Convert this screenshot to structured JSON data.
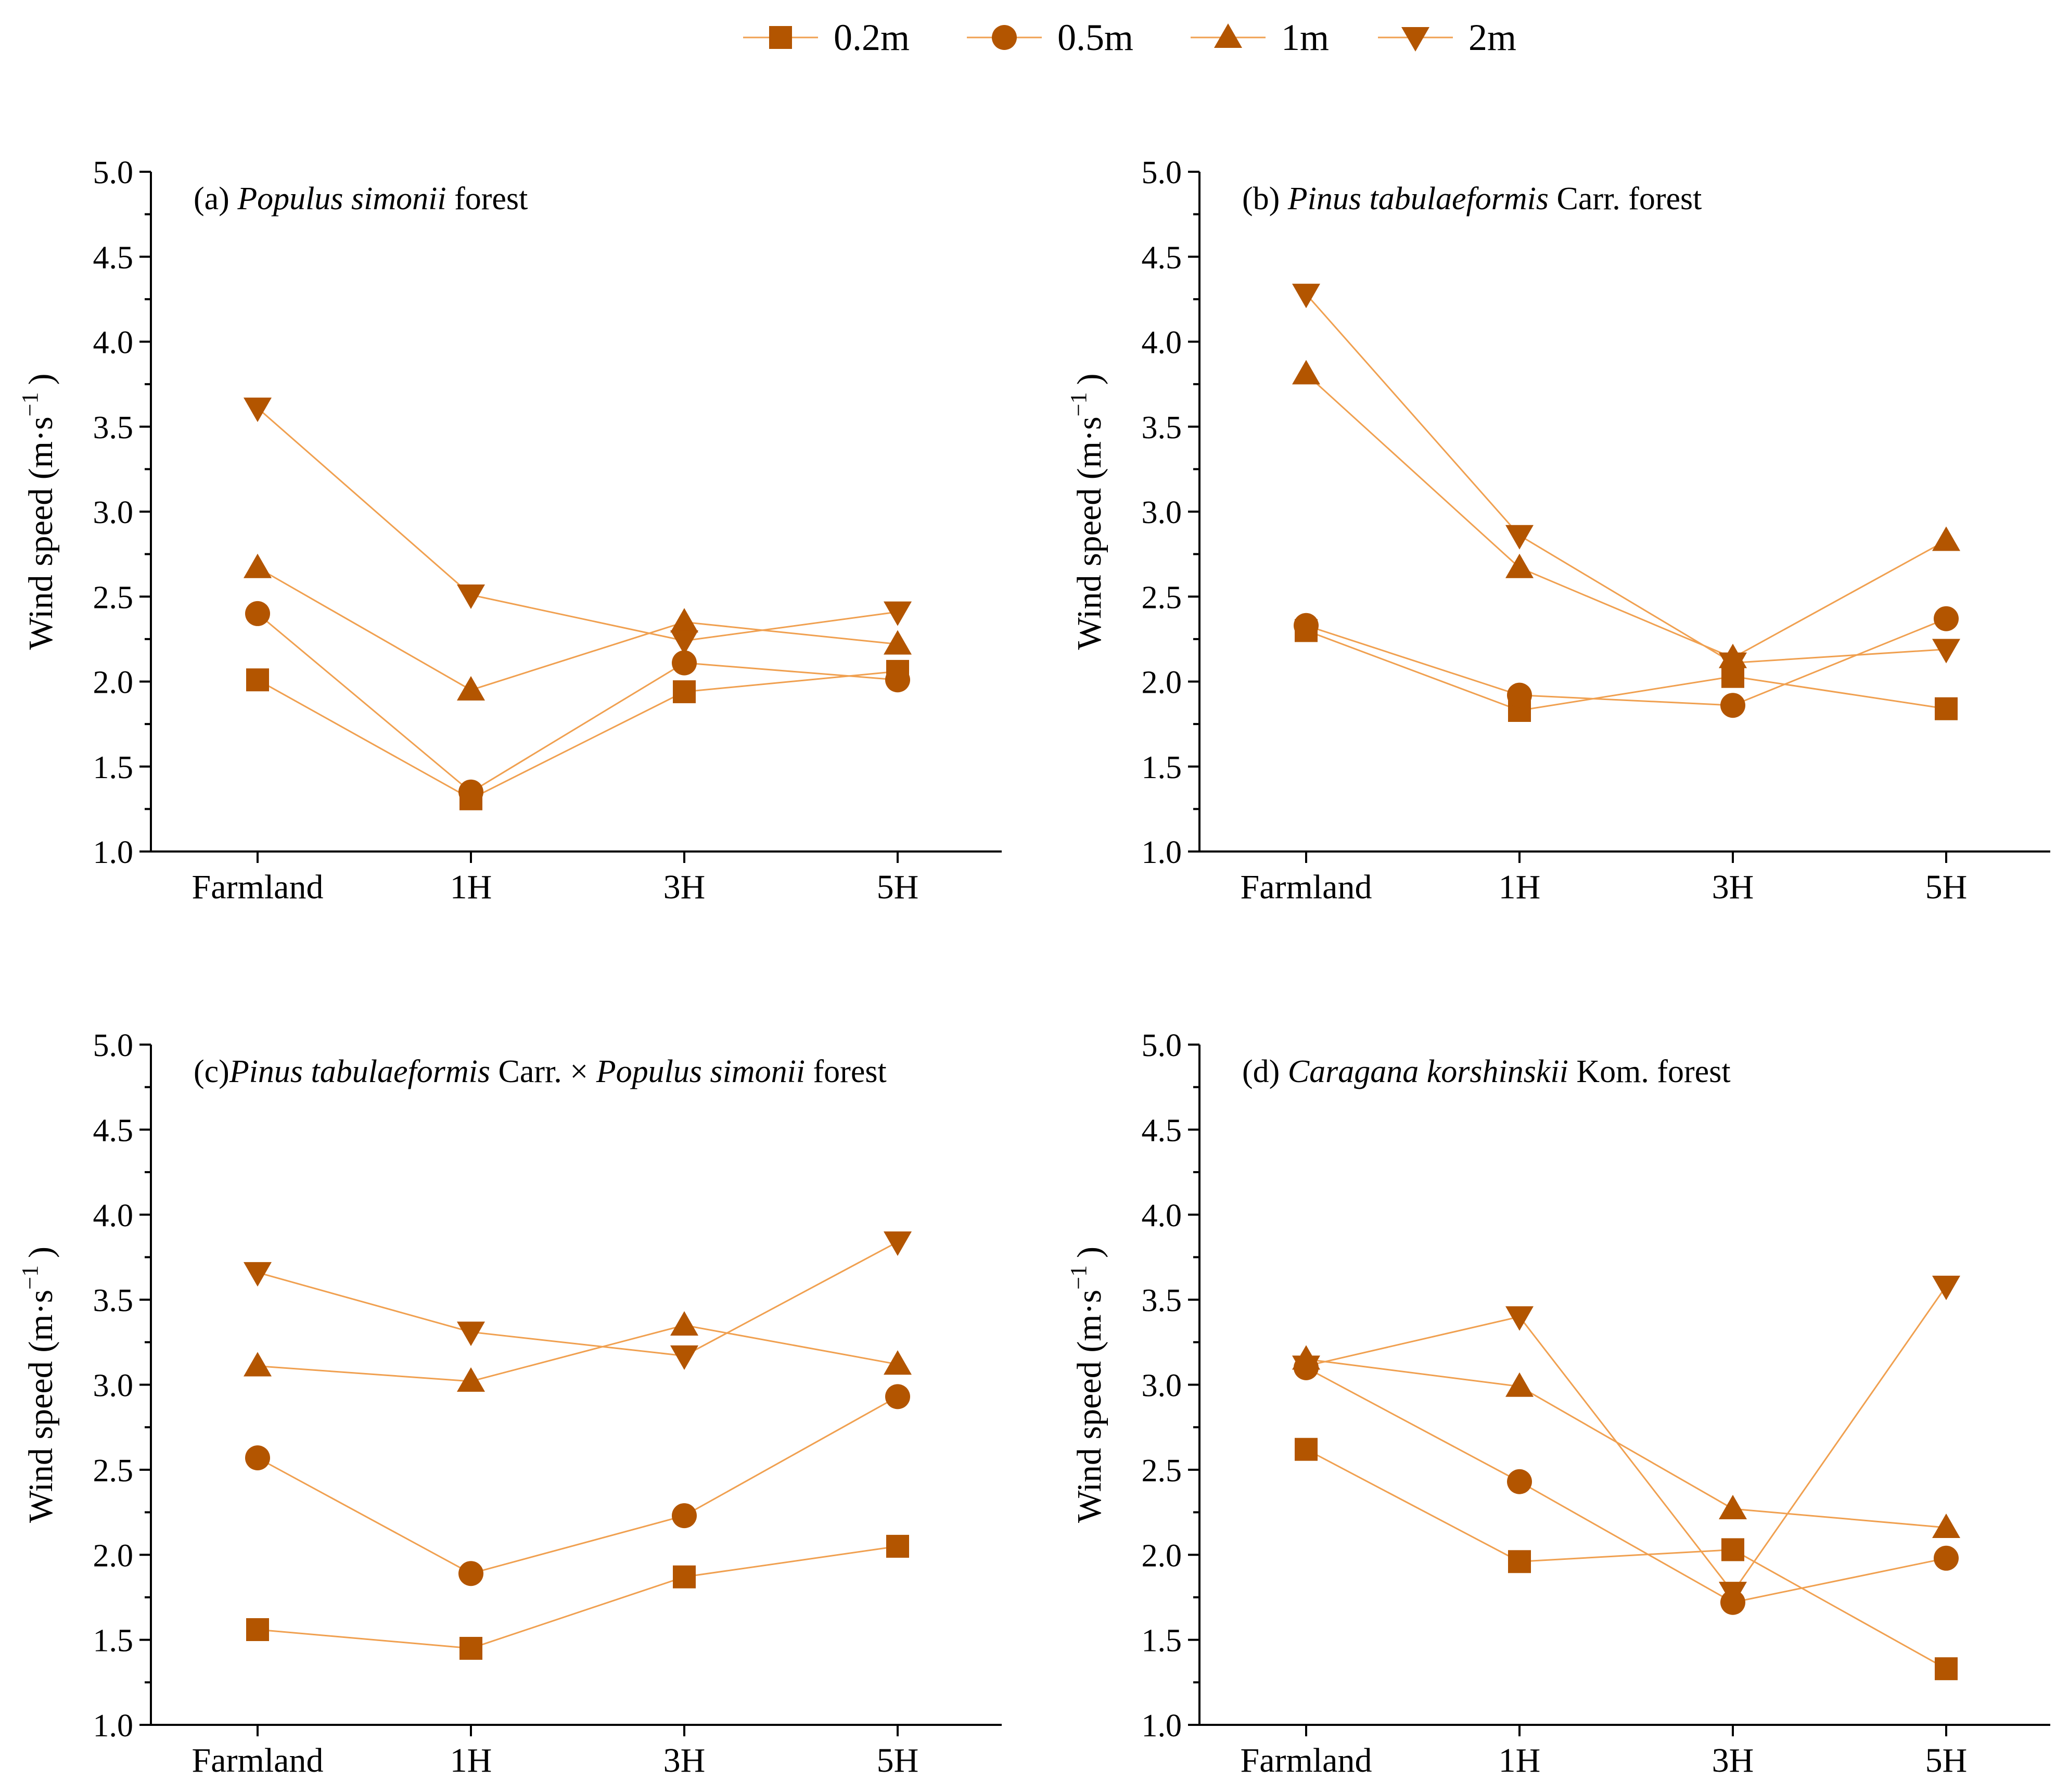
{
  "legend": [
    {
      "name": "0.2m",
      "marker": "square-icon"
    },
    {
      "name": "0.5m",
      "marker": "circle-icon"
    },
    {
      "name": "1m",
      "marker": "triangle-up-icon"
    },
    {
      "name": "2m",
      "marker": "triangle-down-icon"
    }
  ],
  "colors": {
    "line": "#F0A050",
    "marker": "#B35500",
    "axis": "#000000"
  },
  "chart_data": [
    {
      "type": "line",
      "panel": "a",
      "title_prefix": "(a) ",
      "title_italic": "Populus simonii",
      "title_suffix": " forest",
      "ylabel": "Wind speed (m·s",
      "ylabel_sup": "−1",
      "ylabel_end": ")",
      "ylim": [
        1.0,
        5.0
      ],
      "yticks": [
        "1.0",
        "1.5",
        "2.0",
        "2.5",
        "3.0",
        "3.5",
        "4.0",
        "4.5",
        "5.0"
      ],
      "categories": [
        "Farmland",
        "1H",
        "3H",
        "5H"
      ],
      "series": [
        {
          "name": "0.2m",
          "values": [
            2.01,
            1.31,
            1.94,
            2.06
          ]
        },
        {
          "name": "0.5m",
          "values": [
            2.4,
            1.35,
            2.11,
            2.01
          ]
        },
        {
          "name": "1m",
          "values": [
            2.67,
            1.95,
            2.35,
            2.22
          ]
        },
        {
          "name": "2m",
          "values": [
            3.61,
            2.51,
            2.24,
            2.41
          ]
        }
      ]
    },
    {
      "type": "line",
      "panel": "b",
      "title_prefix": "(b) ",
      "title_italic": "Pinus tabulaeformis",
      "title_suffix": " Carr. forest",
      "ylabel": "Wind speed (m·s",
      "ylabel_sup": "−1",
      "ylabel_end": ")",
      "ylim": [
        1.0,
        5.0
      ],
      "yticks": [
        "1.0",
        "1.5",
        "2.0",
        "2.5",
        "3.0",
        "3.5",
        "4.0",
        "4.5",
        "5.0"
      ],
      "categories": [
        "Farmland",
        "1H",
        "3H",
        "5H"
      ],
      "series": [
        {
          "name": "0.2m",
          "values": [
            2.3,
            1.83,
            2.03,
            1.84
          ]
        },
        {
          "name": "0.5m",
          "values": [
            2.33,
            1.92,
            1.86,
            2.37
          ]
        },
        {
          "name": "1m",
          "values": [
            3.81,
            2.67,
            2.14,
            2.83
          ]
        },
        {
          "name": "2m",
          "values": [
            4.28,
            2.86,
            2.11,
            2.19
          ]
        }
      ]
    },
    {
      "type": "line",
      "panel": "c",
      "title_prefix": "(c)",
      "title_italic": "Pinus tabulaeformis",
      "title_suffix": " Carr. × ",
      "title_italic2": "Populus simonii",
      "title_suffix2": " forest",
      "ylabel": "Wind speed (m·s",
      "ylabel_sup": "−1",
      "ylabel_end": ")",
      "ylim": [
        1.0,
        5.0
      ],
      "yticks": [
        "1.0",
        "1.5",
        "2.0",
        "2.5",
        "3.0",
        "3.5",
        "4.0",
        "4.5",
        "5.0"
      ],
      "categories": [
        "Farmland",
        "1H",
        "3H",
        "5H"
      ],
      "series": [
        {
          "name": "0.2m",
          "values": [
            1.56,
            1.45,
            1.87,
            2.05
          ]
        },
        {
          "name": "0.5m",
          "values": [
            2.57,
            1.89,
            2.23,
            2.93
          ]
        },
        {
          "name": "1m",
          "values": [
            3.11,
            3.02,
            3.35,
            3.12
          ]
        },
        {
          "name": "2m",
          "values": [
            3.66,
            3.31,
            3.17,
            3.84
          ]
        }
      ]
    },
    {
      "type": "line",
      "panel": "d",
      "title_prefix": "(d) ",
      "title_italic": "Caragana korshinskii",
      "title_suffix": " Kom. forest",
      "ylabel": "Wind speed (m·s",
      "ylabel_sup": "−1",
      "ylabel_end": ")",
      "ylim": [
        1.0,
        5.0
      ],
      "yticks": [
        "1.0",
        "1.5",
        "2.0",
        "2.5",
        "3.0",
        "3.5",
        "4.0",
        "4.5",
        "5.0"
      ],
      "categories": [
        "Farmland",
        "1H",
        "3H",
        "5H"
      ],
      "series": [
        {
          "name": "0.2m",
          "values": [
            2.62,
            1.96,
            2.03,
            1.33
          ]
        },
        {
          "name": "0.5m",
          "values": [
            3.1,
            2.43,
            1.72,
            1.98
          ]
        },
        {
          "name": "1m",
          "values": [
            3.15,
            2.99,
            2.27,
            2.16
          ]
        },
        {
          "name": "2m",
          "values": [
            3.11,
            3.4,
            1.78,
            3.58
          ]
        }
      ]
    }
  ]
}
